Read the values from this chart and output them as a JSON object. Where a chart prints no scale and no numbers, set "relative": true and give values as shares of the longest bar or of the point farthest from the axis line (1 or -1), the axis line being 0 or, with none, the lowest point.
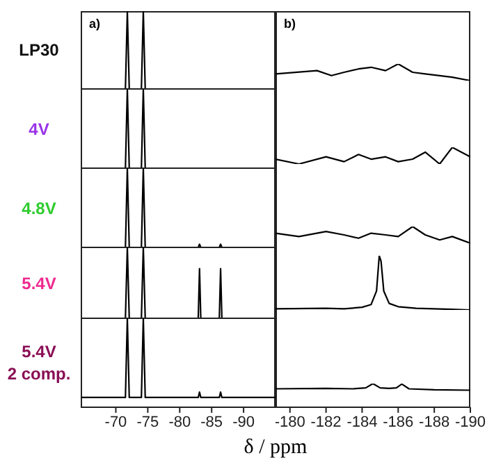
{
  "chart_data": [
    {
      "type": "line",
      "relative": true,
      "ylabel": "LP30",
      "annotations": [
        "a)"
      ],
      "xlim": [
        -64.5,
        -95
      ],
      "tick_labels": false,
      "color": "#000000",
      "x": [
        -64.5,
        -71.5,
        -71.8,
        -72.1,
        -74,
        -74.3,
        -74.6,
        -95
      ],
      "values": [
        0,
        0,
        1,
        0,
        0,
        1,
        0,
        0
      ]
    },
    {
      "type": "line",
      "relative": true,
      "annotations": [
        "b)"
      ],
      "xlim": [
        -179.2,
        -190
      ],
      "tick_labels": false,
      "color": "#000000",
      "x": [
        -179.2,
        -181.5,
        -182.3,
        -183,
        -183.8,
        -184.5,
        -185.3,
        -186,
        -186.8,
        -187.5,
        -188.3,
        -189,
        -190
      ],
      "values": [
        0.4,
        0.6,
        0.3,
        0.5,
        0.7,
        0.8,
        0.6,
        1,
        0.5,
        0.4,
        0.3,
        0.2,
        0
      ]
    },
    {
      "type": "line",
      "relative": true,
      "ylabel": "4V",
      "xlim": [
        -64.5,
        -95
      ],
      "tick_labels": false,
      "color": "#000000",
      "x": [
        -64.5,
        -71.5,
        -71.8,
        -72.1,
        -74,
        -74.3,
        -74.6,
        -95
      ],
      "values": [
        0,
        0,
        1,
        0,
        0,
        1,
        0,
        0
      ]
    },
    {
      "type": "line",
      "relative": true,
      "xlim": [
        -179.2,
        -190
      ],
      "tick_labels": false,
      "color": "#000000",
      "x": [
        -179.2,
        -180.5,
        -182,
        -183,
        -183.8,
        -184.5,
        -185.3,
        -186,
        -186.8,
        -187.5,
        -188.3,
        -189,
        -190
      ],
      "values": [
        0.29,
        0,
        0.43,
        0.14,
        0.57,
        0.29,
        0.43,
        0.14,
        0.29,
        0.71,
        0,
        1,
        0.43
      ]
    },
    {
      "type": "line",
      "relative": true,
      "ylabel": "4.8V",
      "xlim": [
        -64.5,
        -95
      ],
      "tick_labels": false,
      "color": "#000000",
      "x": [
        -64.5,
        -71.5,
        -71.8,
        -72.1,
        -74,
        -74.3,
        -74.6,
        -82.9,
        -83.1,
        -83.3,
        -86.2,
        -86.4,
        -86.6,
        -95
      ],
      "values": [
        0,
        0,
        1,
        0,
        0,
        1,
        0,
        0,
        0.04,
        0,
        0,
        0.04,
        0,
        0
      ]
    },
    {
      "type": "line",
      "relative": true,
      "xlim": [
        -179.2,
        -190
      ],
      "tick_labels": false,
      "color": "#000000",
      "x": [
        -179.2,
        -180.5,
        -182,
        -183,
        -183.8,
        -184.5,
        -185.3,
        -186,
        -186.8,
        -187.5,
        -188.3,
        -189,
        -190
      ],
      "values": [
        0.6,
        0.4,
        0.7,
        0.5,
        0.3,
        0.6,
        0.5,
        0.4,
        1,
        0.5,
        0.2,
        0.4,
        0
      ]
    },
    {
      "type": "line",
      "relative": true,
      "ylabel": "5.4V",
      "xlim": [
        -64.5,
        -95
      ],
      "tick_labels": false,
      "color": "#000000",
      "x": [
        -64.5,
        -71.5,
        -71.8,
        -72.1,
        -74,
        -74.3,
        -74.6,
        -82.9,
        -83.1,
        -83.3,
        -86.2,
        -86.4,
        -86.6,
        -95
      ],
      "values": [
        0,
        0,
        1,
        0,
        0,
        1,
        0,
        0,
        0.7,
        0,
        0,
        0.7,
        0,
        0
      ]
    },
    {
      "type": "line",
      "relative": true,
      "xlim": [
        -179.2,
        -190
      ],
      "tick_labels": false,
      "color": "#000000",
      "x": [
        -179.2,
        -182,
        -183,
        -184,
        -184.5,
        -184.8,
        -184.95,
        -185.05,
        -185.2,
        -185.5,
        -186,
        -187,
        -188,
        -189,
        -190
      ],
      "values": [
        0.02,
        0.03,
        0.02,
        0.05,
        0.1,
        0.35,
        1,
        0.9,
        0.35,
        0.12,
        0.06,
        0.03,
        0.02,
        0.01,
        0
      ]
    },
    {
      "type": "line",
      "relative": true,
      "ylabel": "5.4V\n2 comp.",
      "xlabel": "δ / ppm",
      "xlim": [
        -64.5,
        -95
      ],
      "xticks": [
        -70,
        -75,
        -80,
        -85,
        -90
      ],
      "tick_labels": "x",
      "color": "#000000",
      "x": [
        -64.5,
        -71.5,
        -71.8,
        -72.1,
        -74,
        -74.3,
        -74.6,
        -82.9,
        -83.1,
        -83.3,
        -86.2,
        -86.4,
        -86.6,
        -95
      ],
      "values": [
        0.11,
        0.11,
        1,
        0.11,
        0.11,
        1,
        0.11,
        0.11,
        0.17,
        0.11,
        0.11,
        0.17,
        0.11,
        0.11
      ]
    },
    {
      "type": "line",
      "relative": true,
      "xlim": [
        -179.2,
        -190
      ],
      "xticks": [
        -180,
        -182,
        -184,
        -186,
        -188,
        -190
      ],
      "tick_labels": "x",
      "color": "#000000",
      "x": [
        -179.2,
        -182,
        -183.5,
        -184.2,
        -184.6,
        -185,
        -185.5,
        -185.9,
        -186.2,
        -186.6,
        -188,
        -190
      ],
      "values": [
        0.78,
        0.8,
        0.78,
        0.82,
        1,
        0.82,
        0.8,
        0.82,
        0.98,
        0.78,
        0.74,
        0.72
      ]
    }
  ]
}
